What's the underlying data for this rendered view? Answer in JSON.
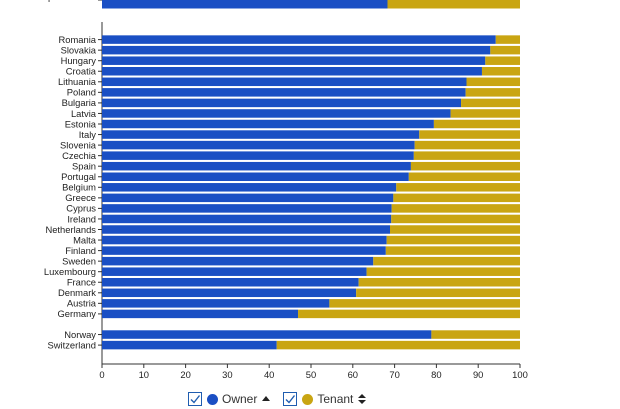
{
  "chart_data": {
    "type": "bar",
    "orientation": "horizontal",
    "stacked": true,
    "categories": [
      "European Union",
      "Romania",
      "Slovakia",
      "Hungary",
      "Croatia",
      "Lithuania",
      "Poland",
      "Bulgaria",
      "Latvia",
      "Estonia",
      "Italy",
      "Slovenia",
      "Czechia",
      "Spain",
      "Portugal",
      "Belgium",
      "Greece",
      "Cyprus",
      "Ireland",
      "Netherlands",
      "Malta",
      "Finland",
      "Sweden",
      "Luxembourg",
      "France",
      "Denmark",
      "Austria",
      "Germany",
      "Norway",
      "Switzerland"
    ],
    "groups": [
      [
        0
      ],
      [
        1,
        27
      ],
      [
        28,
        29
      ]
    ],
    "series": [
      {
        "name": "Owner",
        "color": "#1a4fc4",
        "values": [
          68.3,
          94.2,
          92.9,
          91.7,
          90.9,
          87.2,
          87.0,
          85.9,
          83.4,
          79.4,
          75.9,
          74.8,
          74.6,
          73.9,
          73.4,
          70.4,
          69.7,
          69.3,
          69.2,
          68.9,
          68.1,
          67.9,
          64.9,
          63.3,
          61.4,
          60.8,
          54.4,
          46.9,
          78.8,
          41.8
        ]
      },
      {
        "name": "Tenant",
        "color": "#c9a512",
        "values": [
          31.7,
          5.8,
          7.1,
          8.3,
          9.1,
          12.8,
          13.0,
          14.1,
          16.6,
          20.6,
          24.1,
          25.2,
          25.4,
          26.1,
          26.6,
          29.6,
          30.3,
          30.7,
          30.8,
          31.1,
          31.9,
          32.1,
          35.1,
          36.7,
          38.6,
          39.2,
          45.6,
          53.1,
          21.2,
          58.2
        ]
      }
    ],
    "xlim": [
      0,
      100
    ],
    "xticks": [
      0,
      10,
      20,
      30,
      40,
      50,
      60,
      70,
      80,
      90,
      100
    ],
    "grid": false,
    "legend_position": "bottom"
  },
  "legend": {
    "items": [
      {
        "label": "Owner",
        "color": "#1a4fc4",
        "checked": true,
        "sort_icon": "sort-up-icon"
      },
      {
        "label": "Tenant",
        "color": "#c9a512",
        "checked": true,
        "sort_icon": "sort-both-icon"
      }
    ]
  }
}
